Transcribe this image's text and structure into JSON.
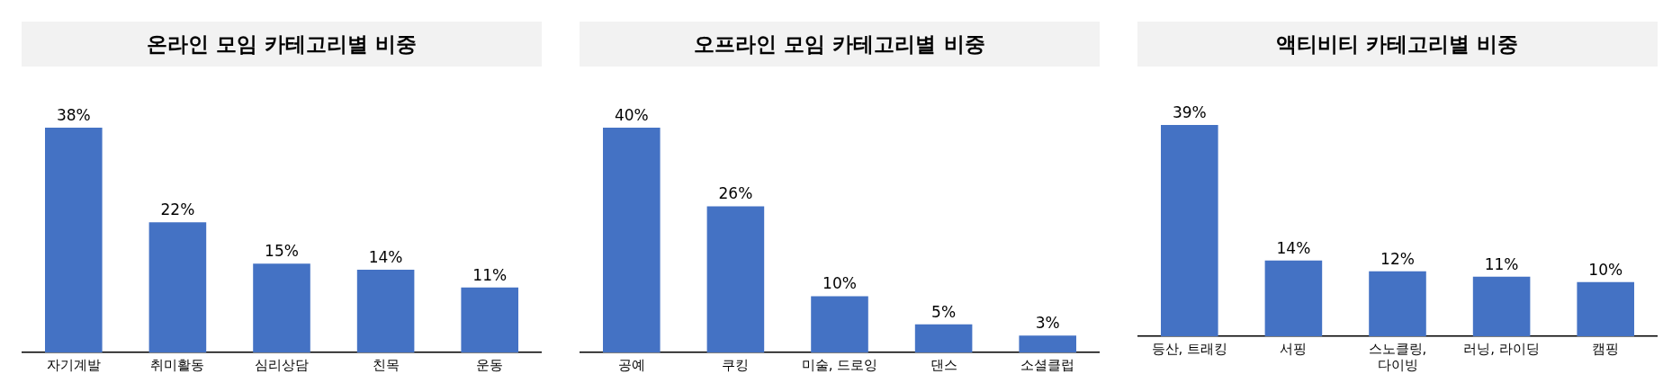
{
  "chart_data": [
    {
      "type": "bar",
      "title": "온라인 모임 카테고리별 비중",
      "categories": [
        "자기계발",
        "취미활동",
        "심리상담",
        "친목",
        "운동"
      ],
      "values": [
        38,
        22,
        15,
        14,
        11
      ],
      "value_labels": [
        "38%",
        "22%",
        "15%",
        "14%",
        "11%"
      ],
      "color": "#4472c4",
      "grid": false,
      "legend": false
    },
    {
      "type": "bar",
      "title": "오프라인 모임 카테고리별 비중",
      "categories": [
        "공예",
        "쿠킹",
        "미술, 드로잉",
        "댄스",
        "소셜클럽"
      ],
      "values": [
        40,
        26,
        10,
        5,
        3
      ],
      "value_labels": [
        "40%",
        "26%",
        "10%",
        "5%",
        "3%"
      ],
      "color": "#4472c4",
      "grid": false,
      "legend": false
    },
    {
      "type": "bar",
      "title": "액티비티 카테고리별 비중",
      "categories": [
        "등산, 트래킹",
        "서핑",
        "스노클링, 다이빙",
        "러닝, 라이딩",
        "캠핑"
      ],
      "values": [
        39,
        14,
        12,
        11,
        10
      ],
      "value_labels": [
        "39%",
        "14%",
        "12%",
        "11%",
        "10%"
      ],
      "color": "#4472c4",
      "grid": false,
      "legend": false
    }
  ]
}
